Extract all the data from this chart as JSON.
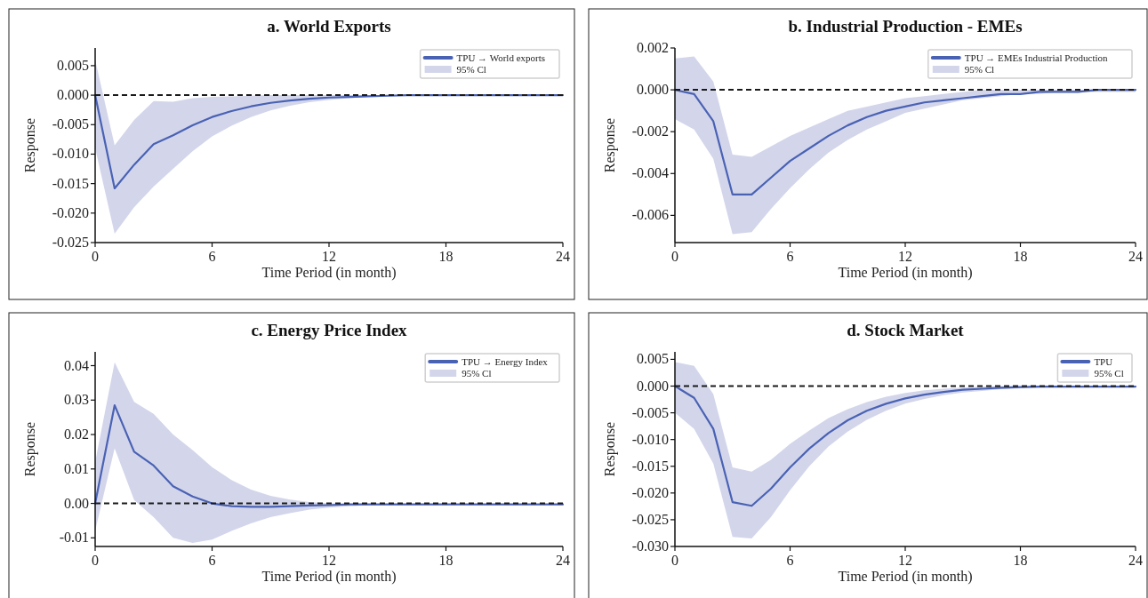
{
  "chart_data": [
    {
      "type": "line",
      "title": "a. World Exports",
      "xlabel": "Time Period (in month)",
      "ylabel": "Response",
      "annotations": [
        "95% Cl"
      ],
      "x": [
        0,
        1,
        2,
        3,
        4,
        5,
        6,
        7,
        8,
        9,
        10,
        11,
        12,
        13,
        14,
        15,
        16,
        17,
        18,
        19,
        20,
        21,
        22,
        23,
        24
      ],
      "xlim": [
        0,
        24
      ],
      "xticks": [
        0,
        6,
        12,
        18,
        24
      ],
      "ylim": [
        -0.025,
        0.008
      ],
      "yticks": [
        {
          "value": 0.005,
          "label": "0.005"
        },
        {
          "value": 0,
          "label": "0.000"
        },
        {
          "value": -0.005,
          "label": "-0.005"
        },
        {
          "value": -0.01,
          "label": "-0.010"
        },
        {
          "value": -0.015,
          "label": "-0.015"
        },
        {
          "value": -0.02,
          "label": "-0.020"
        },
        {
          "value": -0.025,
          "label": "-0.025"
        }
      ],
      "grid": false,
      "legend": "top right",
      "ref_lines": [
        {
          "axis": "y",
          "value": 0,
          "color": "#1a1a1a",
          "line_style": "dashed"
        }
      ],
      "series": [
        {
          "name": "TPU → World exports",
          "color": "#4a62b4",
          "values": [
            0,
            -0.0158,
            -0.0118,
            -0.0083,
            -0.0068,
            -0.0051,
            -0.0037,
            -0.0027,
            -0.0019,
            -0.0013,
            -0.0009,
            -0.0006,
            -0.0004,
            -0.0003,
            -0.0002,
            -0.0001,
            0,
            0,
            0,
            0,
            0,
            0,
            0,
            0,
            0
          ],
          "lower": [
            -0.009,
            -0.0235,
            -0.019,
            -0.0155,
            -0.0125,
            -0.0095,
            -0.007,
            -0.0052,
            -0.0037,
            -0.0026,
            -0.0018,
            -0.0012,
            -0.0008,
            -0.0005,
            -0.0003,
            -0.0002,
            -0.0001,
            0,
            0,
            0,
            0,
            0,
            0,
            0,
            0
          ],
          "upper": [
            0.006,
            -0.0085,
            -0.0042,
            -0.001,
            -0.0011,
            -0.0005,
            -0.0003,
            -0.0002,
            -0.0001,
            0,
            0,
            0,
            0,
            0,
            0,
            0,
            0,
            0,
            0,
            0,
            0,
            0,
            0,
            0,
            0
          ]
        }
      ]
    },
    {
      "type": "line",
      "title": "b. Industrial Production - EMEs",
      "xlabel": "Time Period (in month)",
      "ylabel": "Response",
      "annotations": [
        "95% Cl"
      ],
      "x": [
        0,
        1,
        2,
        3,
        4,
        5,
        6,
        7,
        8,
        9,
        10,
        11,
        12,
        13,
        14,
        15,
        16,
        17,
        18,
        19,
        20,
        21,
        22,
        23,
        24
      ],
      "xlim": [
        0,
        24
      ],
      "xticks": [
        0,
        6,
        12,
        18,
        24
      ],
      "ylim": [
        -0.0073,
        0.002
      ],
      "yticks": [
        {
          "value": 0.002,
          "label": "0.002"
        },
        {
          "value": 0,
          "label": "0.000"
        },
        {
          "value": -0.002,
          "label": "-0.002"
        },
        {
          "value": -0.004,
          "label": "-0.004"
        },
        {
          "value": -0.006,
          "label": "-0.006"
        }
      ],
      "grid": false,
      "legend": "top right",
      "ref_lines": [
        {
          "axis": "y",
          "value": 0,
          "color": "#1a1a1a",
          "line_style": "dashed"
        }
      ],
      "series": [
        {
          "name": "TPU → EMEs Industrial Production",
          "color": "#4a62b4",
          "values": [
            0,
            -0.0002,
            -0.0015,
            -0.005,
            -0.005,
            -0.0042,
            -0.0034,
            -0.0028,
            -0.0022,
            -0.0017,
            -0.0013,
            -0.001,
            -0.0008,
            -0.0006,
            -0.0005,
            -0.0004,
            -0.0003,
            -0.0002,
            -0.0002,
            -0.0001,
            -0.0001,
            -0.0001,
            0,
            0,
            0
          ],
          "lower": [
            -0.0014,
            -0.0019,
            -0.0033,
            -0.0069,
            -0.0068,
            -0.0057,
            -0.0047,
            -0.0038,
            -0.003,
            -0.0024,
            -0.0019,
            -0.0015,
            -0.0011,
            -0.0009,
            -0.0007,
            -0.0005,
            -0.0004,
            -0.0003,
            -0.0002,
            -0.0002,
            -0.0001,
            -0.0001,
            -0.0001,
            -0.0001,
            -0.0001
          ],
          "upper": [
            0.0015,
            0.0016,
            0.0004,
            -0.0031,
            -0.0032,
            -0.0027,
            -0.0022,
            -0.0018,
            -0.0014,
            -0.001,
            -0.0008,
            -0.0006,
            -0.0004,
            -0.0003,
            -0.0002,
            -0.0001,
            0,
            0,
            0,
            0,
            0,
            0,
            0,
            0,
            0
          ]
        }
      ]
    },
    {
      "type": "line",
      "title": "c. Energy Price Index",
      "xlabel": "Time Period (in month)",
      "ylabel": "Response",
      "annotations": [
        "95% Cl"
      ],
      "x": [
        0,
        1,
        2,
        3,
        4,
        5,
        6,
        7,
        8,
        9,
        10,
        11,
        12,
        13,
        14,
        15,
        16,
        17,
        18,
        19,
        20,
        21,
        22,
        23,
        24
      ],
      "xlim": [
        0,
        24
      ],
      "xticks": [
        0,
        6,
        12,
        18,
        24
      ],
      "ylim": [
        -0.0125,
        0.044
      ],
      "yticks": [
        {
          "value": 0.04,
          "label": "0.04"
        },
        {
          "value": 0.03,
          "label": "0.03"
        },
        {
          "value": 0.02,
          "label": "0.02"
        },
        {
          "value": 0.01,
          "label": "0.01"
        },
        {
          "value": 0,
          "label": "0.00"
        },
        {
          "value": -0.01,
          "label": "-0.01"
        }
      ],
      "grid": false,
      "legend": "top right",
      "ref_lines": [
        {
          "axis": "y",
          "value": 0,
          "color": "#1a1a1a",
          "line_style": "dashed"
        }
      ],
      "series": [
        {
          "name": "TPU → Energy Index",
          "color": "#4a62b4",
          "values": [
            0,
            0.0285,
            0.015,
            0.011,
            0.005,
            0.002,
            0,
            -0.0008,
            -0.001,
            -0.001,
            -0.0008,
            -0.0006,
            -0.0005,
            -0.0003,
            -0.0003,
            -0.0003,
            -0.0003,
            -0.0003,
            -0.0003,
            -0.0003,
            -0.0003,
            -0.0003,
            -0.0003,
            -0.0003,
            -0.0003
          ],
          "lower": [
            -0.008,
            0.016,
            0.001,
            -0.004,
            -0.01,
            -0.0115,
            -0.0105,
            -0.008,
            -0.0058,
            -0.004,
            -0.0028,
            -0.0018,
            -0.0012,
            -0.0008,
            -0.0006,
            -0.0005,
            -0.0004,
            -0.0004,
            -0.0004,
            -0.0004,
            -0.0004,
            -0.0004,
            -0.0004,
            -0.0004,
            -0.0004
          ],
          "upper": [
            0.012,
            0.041,
            0.0295,
            0.026,
            0.02,
            0.0155,
            0.0105,
            0.0068,
            0.004,
            0.0022,
            0.0011,
            0.0004,
            0,
            -0.0001,
            -0.0002,
            -0.0002,
            -0.0002,
            -0.0002,
            -0.0002,
            -0.0002,
            -0.0002,
            -0.0002,
            -0.0002,
            -0.0002,
            -0.0002
          ]
        }
      ]
    },
    {
      "type": "line",
      "title": "d. Stock Market",
      "xlabel": "Time Period (in month)",
      "ylabel": "Response",
      "annotations": [
        "95% Cl"
      ],
      "x": [
        0,
        1,
        2,
        3,
        4,
        5,
        6,
        7,
        8,
        9,
        10,
        11,
        12,
        13,
        14,
        15,
        16,
        17,
        18,
        19,
        20,
        21,
        22,
        23,
        24
      ],
      "xlim": [
        0,
        24
      ],
      "xticks": [
        0,
        6,
        12,
        18,
        24
      ],
      "ylim": [
        -0.03,
        0.0064
      ],
      "yticks": [
        {
          "value": 0.005,
          "label": "0.005"
        },
        {
          "value": 0,
          "label": "0.000"
        },
        {
          "value": -0.005,
          "label": "-0.005"
        },
        {
          "value": -0.01,
          "label": "-0.010"
        },
        {
          "value": -0.015,
          "label": "-0.015"
        },
        {
          "value": -0.02,
          "label": "-0.020"
        },
        {
          "value": -0.025,
          "label": "-0.025"
        },
        {
          "value": -0.03,
          "label": "-0.030"
        }
      ],
      "grid": false,
      "legend": "top right",
      "ref_lines": [
        {
          "axis": "y",
          "value": 0,
          "color": "#1a1a1a",
          "line_style": "dashed"
        }
      ],
      "series": [
        {
          "name": "TPU",
          "color": "#4a62b4",
          "values": [
            0,
            -0.0022,
            -0.008,
            -0.0217,
            -0.0224,
            -0.0192,
            -0.0152,
            -0.0117,
            -0.0088,
            -0.0064,
            -0.0046,
            -0.0033,
            -0.0023,
            -0.0016,
            -0.0011,
            -0.0007,
            -0.0005,
            -0.0003,
            -0.0002,
            -0.0001,
            -0.0001,
            -0.0001,
            -0.0001,
            -0.0001,
            -0.0001
          ],
          "lower": [
            -0.005,
            -0.008,
            -0.0145,
            -0.0282,
            -0.0285,
            -0.0245,
            -0.0195,
            -0.015,
            -0.0113,
            -0.0085,
            -0.0063,
            -0.0046,
            -0.0033,
            -0.0024,
            -0.0017,
            -0.0012,
            -0.0009,
            -0.0006,
            -0.0004,
            -0.0003,
            -0.0002,
            -0.0002,
            -0.0002,
            -0.0002,
            -0.0002
          ],
          "upper": [
            0.0045,
            0.0038,
            -0.0015,
            -0.0152,
            -0.016,
            -0.0138,
            -0.0108,
            -0.0083,
            -0.006,
            -0.0043,
            -0.003,
            -0.002,
            -0.0013,
            -0.0008,
            -0.0005,
            -0.0003,
            -0.0001,
            0,
            0,
            0,
            0,
            0,
            0,
            0,
            0
          ]
        }
      ]
    }
  ]
}
